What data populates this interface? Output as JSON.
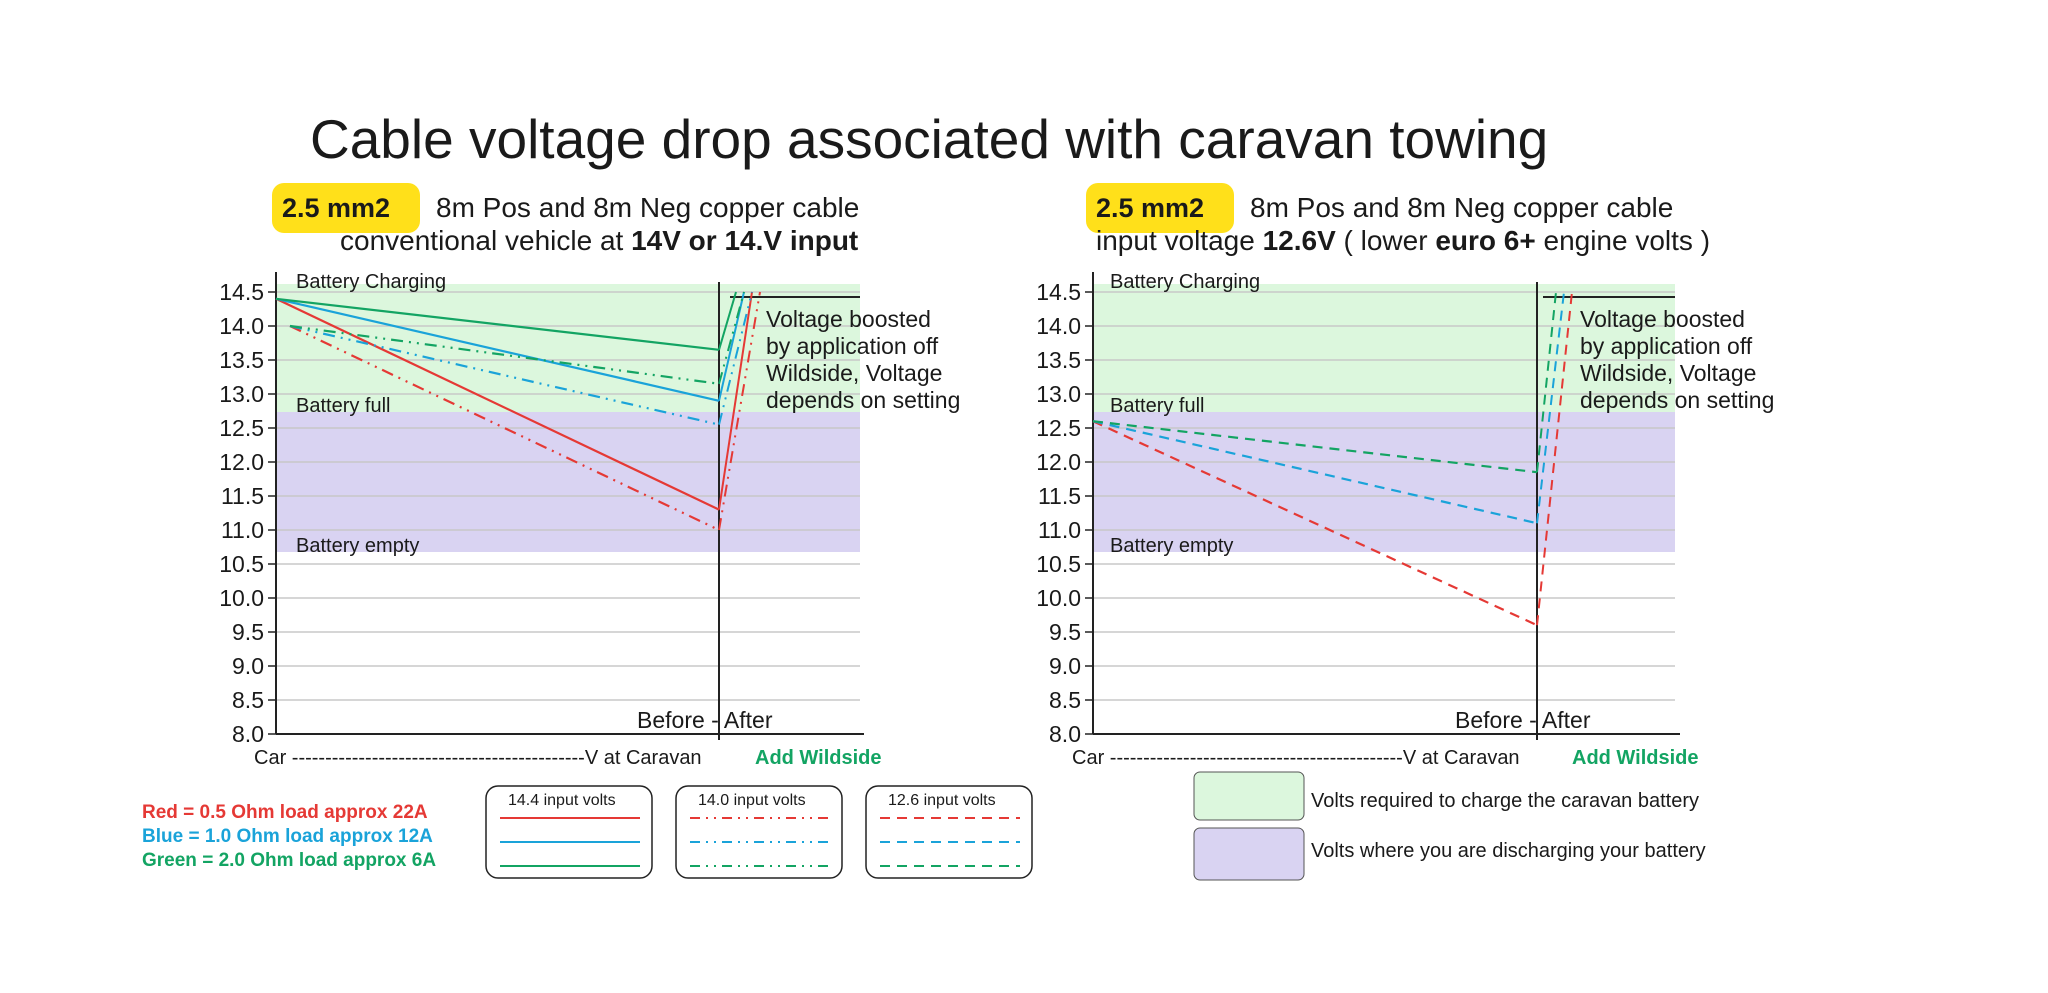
{
  "title": "Cable voltage drop associated with caravan towing",
  "colors": {
    "red": "#e53935",
    "blue": "#1aa3d9",
    "green": "#13a463",
    "charging_zone": "#dcf7dd",
    "discharge_zone": "#d9d3f2",
    "highlight": "#ffe01a",
    "grid": "#c8c8c8"
  },
  "y_ticks": [
    "14.5",
    "14.0",
    "13.5",
    "13.0",
    "12.5",
    "12.0",
    "11.5",
    "11.0",
    "10.5",
    "10.0",
    "9.5",
    "9.0",
    "8.5",
    "8.0"
  ],
  "zones": {
    "charging": "Battery Charging",
    "full": "Battery full",
    "empty": "Battery empty"
  },
  "x_caption": {
    "prefix": "Car --------------------------------------------V at Caravan",
    "wildside": "Add Wildside"
  },
  "before_after": "Before - After",
  "note_lines": [
    "Voltage boosted",
    "by application off",
    "Wildside, Voltage",
    "depends on setting"
  ],
  "legend": {
    "red": "Red    = 0.5 Ohm load approx 22A",
    "blue": "Blue   = 1.0 Ohm load approx 12A",
    "green": "Green = 2.0 Ohm load approx  6A",
    "boxes": [
      "14.4 input volts",
      "14.0 input volts",
      "12.6 input volts"
    ]
  },
  "key": {
    "charge": "Volts required to charge the caravan battery",
    "discharge": "Volts where you are discharging your battery"
  },
  "charts": [
    {
      "badge": "2.5 mm2",
      "line1": "8m Pos and 8m Neg copper cable",
      "line2_parts": [
        {
          "t": "conventional vehicle at ",
          "b": false
        },
        {
          "t": "14V or 14.V input",
          "b": true
        }
      ]
    },
    {
      "badge": "2.5 mm2",
      "line1": "8m Pos and 8m Neg copper cable",
      "line2_parts": [
        {
          "t": "input voltage ",
          "b": false
        },
        {
          "t": "12.6V",
          "b": true
        },
        {
          "t": " ( lower ",
          "b": false
        },
        {
          "t": "euro 6+",
          "b": true
        },
        {
          "t": " engine volts )",
          "b": false
        }
      ]
    }
  ],
  "chart_data": [
    {
      "type": "line",
      "title": "2.5 mm2 8m Pos and 8m Neg copper cable conventional vehicle at 14V or 14.V input",
      "xlabel": "Car --------------------------------------------V at Caravan",
      "ylim": [
        8.0,
        14.5
      ],
      "x": [
        "Car",
        "V at Caravan"
      ],
      "boosted_voltage": 14.5,
      "zones": {
        "charging": [
          12.7,
          14.6
        ],
        "discharging": [
          10.7,
          12.7
        ]
      },
      "series": [
        {
          "color": "red",
          "style": "solid",
          "input": "14.4 input volts",
          "values": [
            14.4,
            11.3
          ]
        },
        {
          "color": "blue",
          "style": "solid",
          "input": "14.4 input volts",
          "values": [
            14.4,
            12.9
          ]
        },
        {
          "color": "green",
          "style": "solid",
          "input": "14.4 input volts",
          "values": [
            14.4,
            13.65
          ]
        },
        {
          "color": "red",
          "style": "dashdot",
          "input": "14.0 input volts",
          "values": [
            14.0,
            11.0
          ]
        },
        {
          "color": "blue",
          "style": "dashdot",
          "input": "14.0 input volts",
          "values": [
            14.0,
            12.55
          ]
        },
        {
          "color": "green",
          "style": "dashdot",
          "input": "14.0 input volts",
          "values": [
            14.0,
            13.15
          ]
        }
      ]
    },
    {
      "type": "line",
      "title": "2.5 mm2 8m Pos and 8m Neg copper cable input voltage 12.6V ( lower euro 6+ engine volts )",
      "xlabel": "Car --------------------------------------------V at Caravan",
      "ylim": [
        8.0,
        14.5
      ],
      "x": [
        "Car",
        "V at Caravan"
      ],
      "boosted_voltage": 14.5,
      "zones": {
        "charging": [
          12.7,
          14.6
        ],
        "discharging": [
          10.7,
          12.7
        ]
      },
      "series": [
        {
          "color": "red",
          "style": "dashed",
          "input": "12.6 input volts",
          "values": [
            12.6,
            9.6
          ]
        },
        {
          "color": "blue",
          "style": "dashed",
          "input": "12.6 input volts",
          "values": [
            12.6,
            11.1
          ]
        },
        {
          "color": "green",
          "style": "dashed",
          "input": "12.6 input volts",
          "values": [
            12.6,
            11.85
          ]
        }
      ]
    }
  ]
}
